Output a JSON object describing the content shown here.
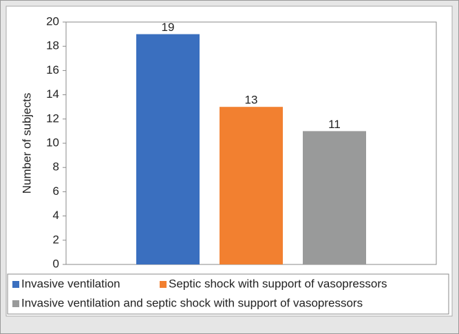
{
  "chart_data": {
    "type": "bar",
    "y_label": "Number of subjects",
    "categories": [
      null
    ],
    "series": [
      {
        "name": "Invasive ventilation",
        "color": "#3a6fbf",
        "values": [
          19
        ]
      },
      {
        "name": "Septic shock with support of vasopressors",
        "color": "#f28030",
        "values": [
          13
        ]
      },
      {
        "name": "Invasive ventilation and septic shock with support of vasopressors",
        "color": "#999a9a",
        "values": [
          11
        ]
      }
    ],
    "ylim": [
      0,
      20
    ],
    "yticks": [
      0,
      2,
      4,
      6,
      8,
      10,
      12,
      14,
      16,
      18,
      20
    ]
  }
}
